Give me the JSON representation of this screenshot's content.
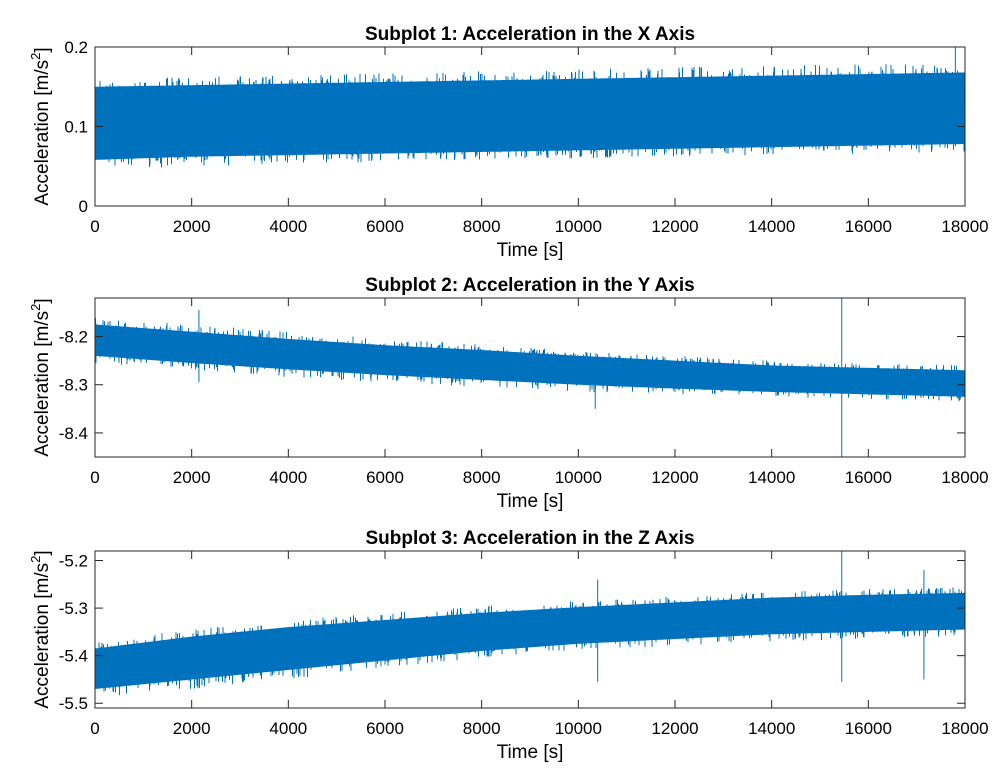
{
  "figure": {
    "background": "#ffffff",
    "line_color": "#0072BD",
    "axes_color": "#262626"
  },
  "chart_data": [
    {
      "type": "line",
      "title": "Subplot 1: Acceleration in the X Axis",
      "xlabel": "Time [s]",
      "ylabel": "Acceleration [m/s",
      "ylabel_sup": "2",
      "ylabel_close": "]",
      "xlim": [
        0,
        18000
      ],
      "ylim": [
        0,
        0.2
      ],
      "xticks": [
        0,
        2000,
        4000,
        6000,
        8000,
        10000,
        12000,
        14000,
        16000,
        18000
      ],
      "yticks": [
        0,
        0.1,
        0.2
      ],
      "ytick_labels": [
        "0",
        "0.1",
        "0.2"
      ],
      "grid": false,
      "series": [
        {
          "x": [
            0,
            2000,
            4000,
            6000,
            8000,
            10000,
            12000,
            14000,
            16000,
            18000
          ],
          "upper": [
            0.16,
            0.162,
            0.165,
            0.167,
            0.17,
            0.172,
            0.175,
            0.177,
            0.178,
            0.18
          ],
          "lower": [
            0.045,
            0.05,
            0.052,
            0.055,
            0.058,
            0.06,
            0.062,
            0.064,
            0.066,
            0.068
          ],
          "core_upper": [
            0.15,
            0.152,
            0.154,
            0.156,
            0.158,
            0.16,
            0.162,
            0.164,
            0.166,
            0.168
          ],
          "core_lower": [
            0.058,
            0.062,
            0.064,
            0.066,
            0.068,
            0.07,
            0.072,
            0.074,
            0.076,
            0.078
          ],
          "spikes": [
            {
              "x": 17800,
              "y": 0.2
            }
          ]
        }
      ]
    },
    {
      "type": "line",
      "title": "Subplot 2: Acceleration in the Y Axis",
      "xlabel": "Time [s]",
      "ylabel": "Acceleration [m/s",
      "ylabel_sup": "2",
      "ylabel_close": "]",
      "xlim": [
        0,
        18000
      ],
      "ylim": [
        -8.45,
        -8.12
      ],
      "xticks": [
        0,
        2000,
        4000,
        6000,
        8000,
        10000,
        12000,
        14000,
        16000,
        18000
      ],
      "yticks": [
        -8.4,
        -8.3,
        -8.2
      ],
      "ytick_labels": [
        "-8.4",
        "-8.3",
        "-8.2"
      ],
      "grid": false,
      "series": [
        {
          "x": [
            0,
            2000,
            4000,
            6000,
            8000,
            10000,
            12000,
            14000,
            16000,
            18000
          ],
          "upper": [
            -8.16,
            -8.175,
            -8.19,
            -8.205,
            -8.215,
            -8.23,
            -8.24,
            -8.25,
            -8.255,
            -8.26
          ],
          "lower": [
            -8.255,
            -8.27,
            -8.285,
            -8.295,
            -8.305,
            -8.315,
            -8.32,
            -8.325,
            -8.33,
            -8.335
          ],
          "core_upper": [
            -8.175,
            -8.19,
            -8.205,
            -8.218,
            -8.228,
            -8.24,
            -8.25,
            -8.26,
            -8.265,
            -8.27
          ],
          "core_lower": [
            -8.24,
            -8.255,
            -8.268,
            -8.28,
            -8.29,
            -8.3,
            -8.308,
            -8.315,
            -8.32,
            -8.325
          ],
          "spikes": [
            {
              "x": 2150,
              "y": -8.145
            },
            {
              "x": 2150,
              "y": -8.295
            },
            {
              "x": 10350,
              "y": -8.35
            },
            {
              "x": 15450,
              "y": -8.12
            },
            {
              "x": 15450,
              "y": -8.45
            }
          ]
        }
      ]
    },
    {
      "type": "line",
      "title": "Subplot 3: Acceleration in the Z Axis",
      "xlabel": "Time [s]",
      "ylabel": "Acceleration [m/s",
      "ylabel_sup": "2",
      "ylabel_close": "]",
      "xlim": [
        0,
        18000
      ],
      "ylim": [
        -5.51,
        -5.18
      ],
      "xticks": [
        0,
        2000,
        4000,
        6000,
        8000,
        10000,
        12000,
        14000,
        16000,
        18000
      ],
      "yticks": [
        -5.5,
        -5.4,
        -5.3,
        -5.2
      ],
      "ytick_labels": [
        "-5.5",
        "-5.4",
        "-5.3",
        "-5.2"
      ],
      "grid": false,
      "series": [
        {
          "x": [
            0,
            2000,
            4000,
            6000,
            8000,
            10000,
            12000,
            14000,
            16000,
            18000
          ],
          "upper": [
            -5.37,
            -5.345,
            -5.325,
            -5.31,
            -5.295,
            -5.285,
            -5.275,
            -5.265,
            -5.26,
            -5.255
          ],
          "lower": [
            -5.49,
            -5.47,
            -5.45,
            -5.425,
            -5.405,
            -5.39,
            -5.38,
            -5.37,
            -5.365,
            -5.36
          ],
          "core_upper": [
            -5.385,
            -5.36,
            -5.34,
            -5.325,
            -5.31,
            -5.298,
            -5.288,
            -5.278,
            -5.272,
            -5.268
          ],
          "core_lower": [
            -5.47,
            -5.45,
            -5.43,
            -5.41,
            -5.39,
            -5.375,
            -5.365,
            -5.355,
            -5.35,
            -5.345
          ],
          "spikes": [
            {
              "x": 10400,
              "y": -5.24
            },
            {
              "x": 10400,
              "y": -5.455
            },
            {
              "x": 15450,
              "y": -5.18
            },
            {
              "x": 15450,
              "y": -5.455
            },
            {
              "x": 17150,
              "y": -5.22
            },
            {
              "x": 17150,
              "y": -5.45
            }
          ]
        }
      ]
    }
  ]
}
